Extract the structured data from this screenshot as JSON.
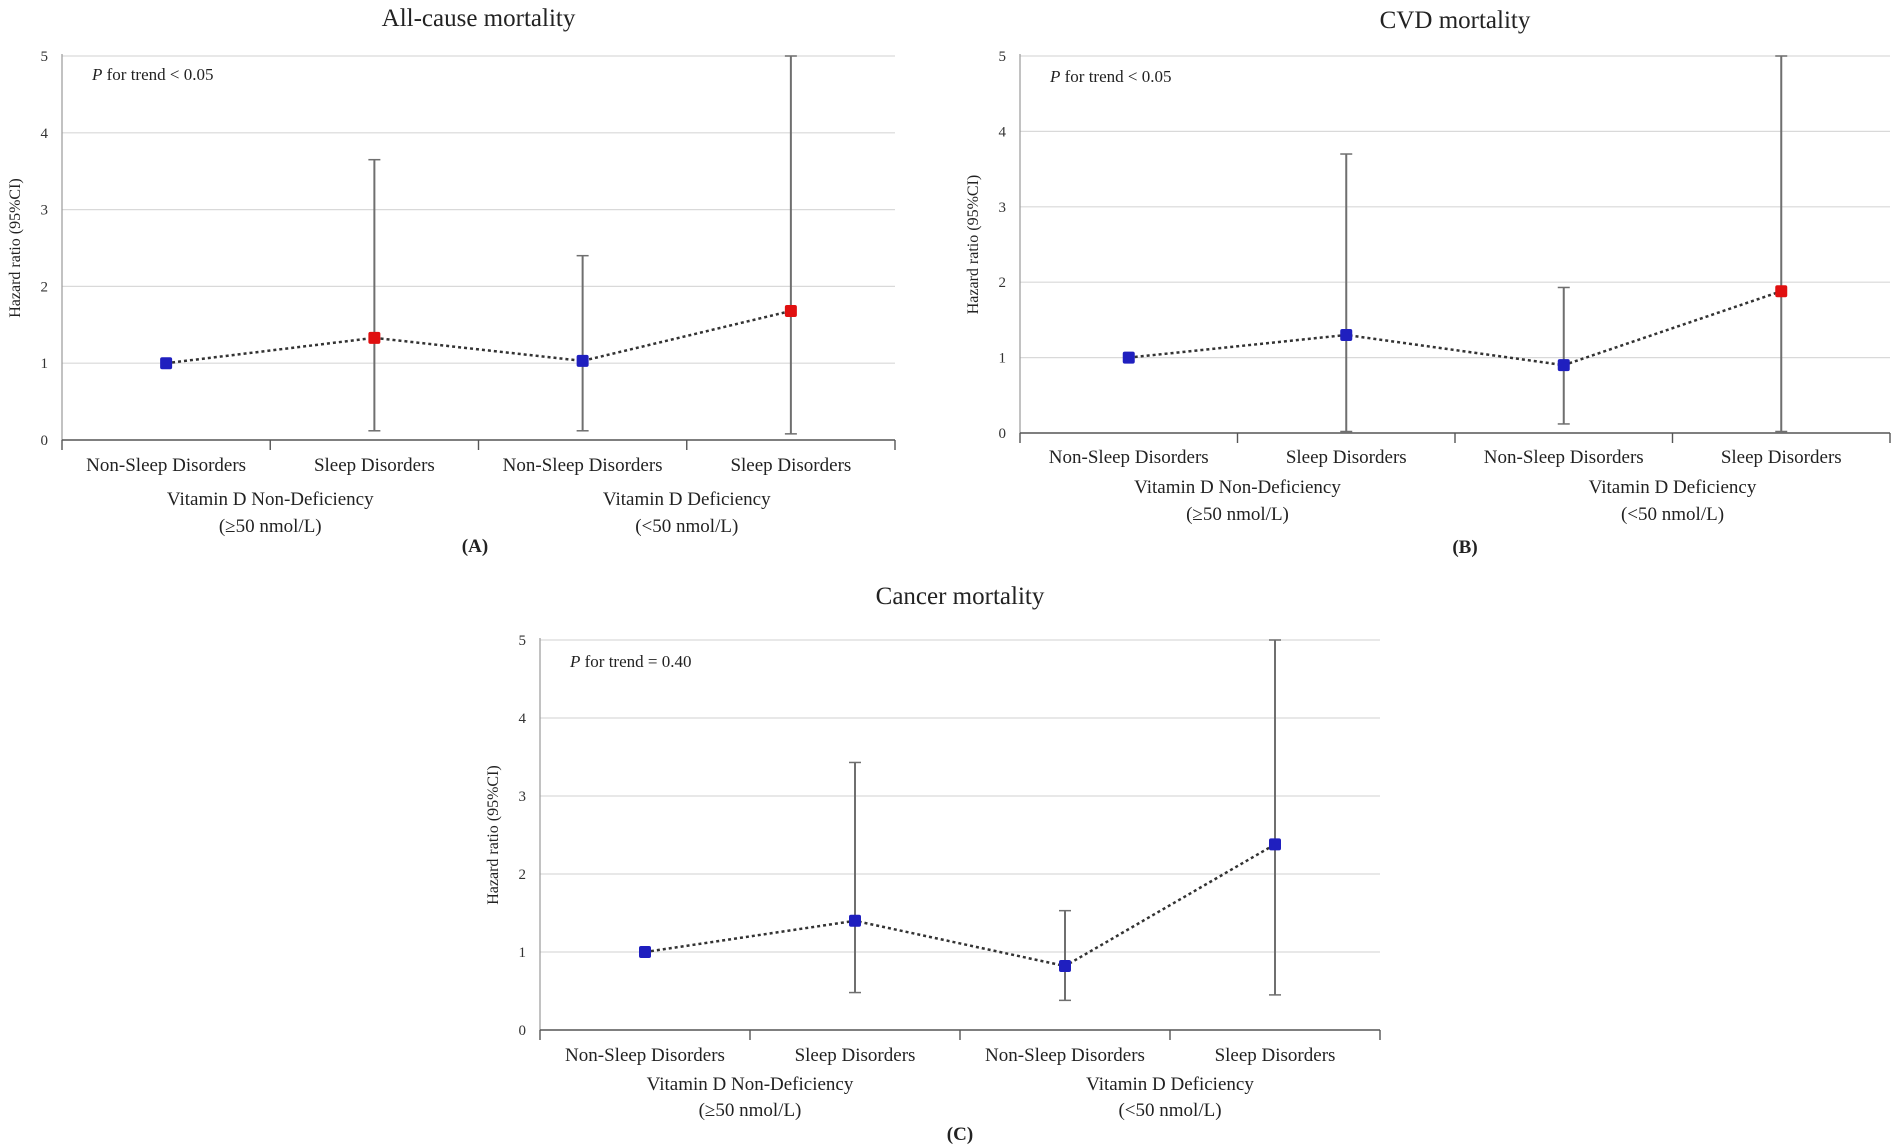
{
  "figure_panels": [
    "(A)",
    "(B)",
    "(C)"
  ],
  "chart_data": [
    {
      "type": "line",
      "panel": "(A)",
      "title": "All-cause mortality",
      "ylabel": "Hazard ratio (95%CI)",
      "ylim": [
        0,
        5
      ],
      "yticks": [
        "0",
        "1",
        "2",
        "3",
        "4",
        "5"
      ],
      "grid": true,
      "annotation": {
        "p": "P",
        "text": " for trend < 0.05"
      },
      "categories": [
        "Non-Sleep Disorders",
        "Sleep Disorders",
        "Non-Sleep Disorders",
        "Sleep Disorders"
      ],
      "groups": [
        {
          "line1": "Vitamin D Non-Deficiency",
          "line2": "(≥50 nmol/L)"
        },
        {
          "line1": "Vitamin D Deficiency",
          "line2": "(<50 nmol/L)"
        }
      ],
      "values": [
        1.0,
        1.33,
        1.03,
        1.68
      ],
      "ci_lower": [
        1.0,
        0.12,
        0.12,
        0.08
      ],
      "ci_upper": [
        1.0,
        3.65,
        2.4,
        5.0
      ],
      "point_colors": [
        "#1f1fbf",
        "#e01010",
        "#1f1fbf",
        "#e01010"
      ]
    },
    {
      "type": "line",
      "panel": "(B)",
      "title": "CVD mortality",
      "ylabel": "Hazard ratio (95%CI)",
      "ylim": [
        0,
        5
      ],
      "yticks": [
        "0",
        "1",
        "2",
        "3",
        "4",
        "5"
      ],
      "grid": true,
      "annotation": {
        "p": "P",
        "text": " for trend < 0.05"
      },
      "categories": [
        "Non-Sleep Disorders",
        "Sleep Disorders",
        "Non-Sleep Disorders",
        "Sleep Disorders"
      ],
      "groups": [
        {
          "line1": "Vitamin D Non-Deficiency",
          "line2": "(≥50 nmol/L)"
        },
        {
          "line1": "Vitamin D Deficiency",
          "line2": "(<50 nmol/L)"
        }
      ],
      "values": [
        1.0,
        1.3,
        0.9,
        1.88
      ],
      "ci_lower": [
        1.0,
        0.02,
        0.12,
        0.02
      ],
      "ci_upper": [
        1.0,
        3.7,
        1.93,
        5.0
      ],
      "point_colors": [
        "#1f1fbf",
        "#1f1fbf",
        "#1f1fbf",
        "#e01010"
      ]
    },
    {
      "type": "line",
      "panel": "(C)",
      "title": "Cancer mortality",
      "ylabel": "Hazard ratio (95%CI)",
      "ylim": [
        0,
        5
      ],
      "yticks": [
        "0",
        "1",
        "2",
        "3",
        "4",
        "5"
      ],
      "grid": true,
      "annotation": {
        "p": "P",
        "text": " for trend = 0.40"
      },
      "categories": [
        "Non-Sleep Disorders",
        "Sleep Disorders",
        "Non-Sleep Disorders",
        "Sleep Disorders"
      ],
      "groups": [
        {
          "line1": "Vitamin D Non-Deficiency",
          "line2": "(≥50 nmol/L)"
        },
        {
          "line1": "Vitamin D Deficiency",
          "line2": "(<50 nmol/L)"
        }
      ],
      "values": [
        1.0,
        1.4,
        0.82,
        2.38
      ],
      "ci_lower": [
        1.0,
        0.48,
        0.38,
        0.45
      ],
      "ci_upper": [
        1.0,
        3.43,
        1.53,
        5.0
      ],
      "point_colors": [
        "#1f1fbf",
        "#1f1fbf",
        "#1f1fbf",
        "#1f1fbf"
      ]
    }
  ]
}
